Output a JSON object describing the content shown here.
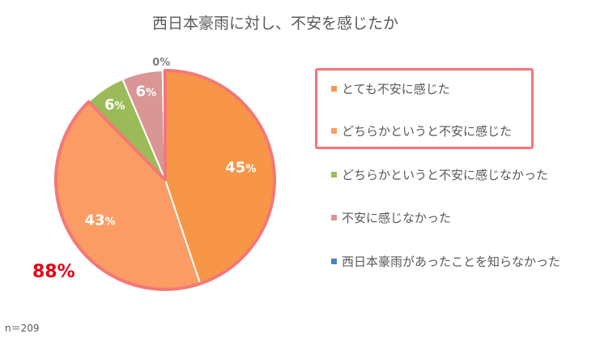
{
  "title": "西日本豪雨に対し、不安を感じたか",
  "total_label": "88%",
  "sample_size": "n＝209",
  "chart_data": {
    "type": "pie",
    "title": "西日本豪雨に対し、不安を感じたか",
    "legend_position": "right",
    "slices": [
      {
        "label": "とても不安に感じた",
        "value": 45,
        "value_label": "45",
        "color": "#f79646",
        "highlighted": true
      },
      {
        "label": "どちらかというと不安に感じた",
        "value": 43,
        "value_label": "43",
        "color": "#fa9c64",
        "highlighted": true
      },
      {
        "label": "どちらかというと不安に感じなかった",
        "value": 6,
        "value_label": "6",
        "color": "#9bbb59",
        "highlighted": false
      },
      {
        "label": "不安に感じなかった",
        "value": 6,
        "value_label": "6",
        "color": "#d99694",
        "highlighted": false
      },
      {
        "label": "西日本豪雨があったことを知らなかった",
        "value": 0.4,
        "value_label": "0",
        "color": "#4f81bd",
        "highlighted": false
      }
    ],
    "unit": "%",
    "highlight_color": "#f47777"
  }
}
